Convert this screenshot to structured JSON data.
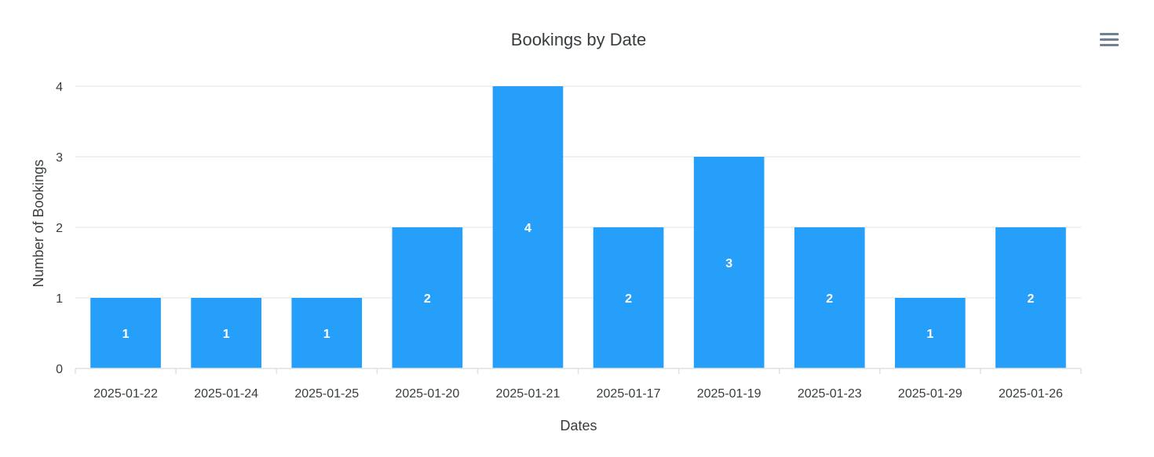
{
  "colors": {
    "bar": "#269ffb",
    "grid": "#e0e0e0",
    "axis": "#e0e0e0",
    "text": "#373d3f",
    "data_label": "#ffffff",
    "menu_icon": "#6e8192"
  },
  "toolbar": {
    "menu_icon": "hamburger-menu-icon"
  },
  "chart_data": {
    "type": "bar",
    "title": "Bookings by Date",
    "xlabel": "Dates",
    "ylabel": "Number of Bookings",
    "categories": [
      "2025-01-22",
      "2025-01-24",
      "2025-01-25",
      "2025-01-20",
      "2025-01-21",
      "2025-01-17",
      "2025-01-19",
      "2025-01-23",
      "2025-01-29",
      "2025-01-26"
    ],
    "values": [
      1,
      1,
      1,
      2,
      4,
      2,
      3,
      2,
      1,
      2
    ],
    "ylim": [
      0,
      4
    ],
    "yticks": [
      0,
      1,
      2,
      3,
      4
    ],
    "grid": true,
    "legend": "none",
    "data_labels": true
  }
}
